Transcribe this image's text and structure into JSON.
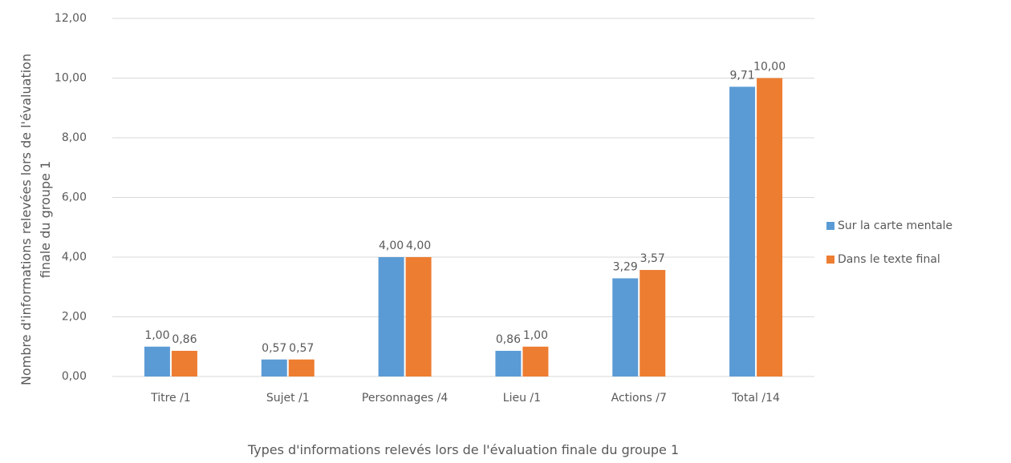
{
  "chart_data": {
    "type": "bar",
    "xlabel": "Types d'informations relevés lors de l'évaluation finale du groupe 1",
    "ylabel": "Nombre d'informations relevées lors de l'évaluation finale du groupe 1",
    "categories": [
      "Titre /1",
      "Sujet /1",
      "Personnages /4",
      "Lieu /1",
      "Actions /7",
      "Total /14"
    ],
    "series": [
      {
        "name": "Sur la carte mentale",
        "color": "#5b9bd5",
        "values": [
          1.0,
          0.57,
          4.0,
          0.86,
          3.29,
          9.71
        ],
        "value_labels": [
          "1,00",
          "0,57",
          "4,00",
          "0,86",
          "3,29",
          "9,71"
        ]
      },
      {
        "name": "Dans le texte final",
        "color": "#ed7d31",
        "values": [
          0.86,
          0.57,
          4.0,
          1.0,
          3.57,
          10.0
        ],
        "value_labels": [
          "0,86",
          "0,57",
          "4,00",
          "1,00",
          "3,57",
          "10,00"
        ]
      }
    ],
    "ylim": [
      0,
      12
    ],
    "yticks": [
      {
        "value": 0,
        "label": "0,00"
      },
      {
        "value": 2,
        "label": "2,00"
      },
      {
        "value": 4,
        "label": "4,00"
      },
      {
        "value": 6,
        "label": "6,00"
      },
      {
        "value": 8,
        "label": "8,00"
      },
      {
        "value": 10,
        "label": "10,00"
      },
      {
        "value": 12,
        "label": "12,00"
      }
    ],
    "grid": true,
    "legend": "right"
  }
}
